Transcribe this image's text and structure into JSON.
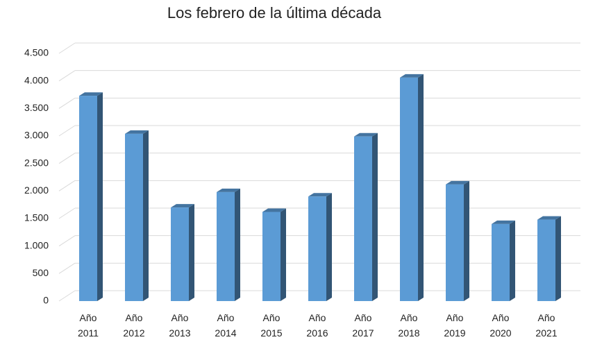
{
  "chart_data": {
    "type": "bar3d",
    "title": "Los febrero de la última década",
    "categories": [
      "Año 2011",
      "Año 2012",
      "Año 2013",
      "Año 2014",
      "Año 2015",
      "Año 2016",
      "Año 2017",
      "Año 2018",
      "Año 2019",
      "Año 2020",
      "Año 2021"
    ],
    "values": [
      3730,
      3040,
      1700,
      1980,
      1620,
      1900,
      2990,
      4060,
      2120,
      1400,
      1480
    ],
    "color": "#5b9bd5",
    "ylim": [
      0,
      4500
    ],
    "yticks": [
      0,
      500,
      {
        "value": 1000,
        "label": "1.000"
      },
      {
        "value": 1500,
        "label": "1.500"
      },
      {
        "value": 2000,
        "label": "2.000"
      },
      {
        "value": 2500,
        "label": "2.500"
      },
      {
        "value": 3000,
        "label": "3.000"
      },
      {
        "value": 3500,
        "label": "3.500"
      },
      {
        "value": 4000,
        "label": "4.000"
      },
      {
        "value": 4500,
        "label": "4.500"
      }
    ],
    "grid": true
  }
}
